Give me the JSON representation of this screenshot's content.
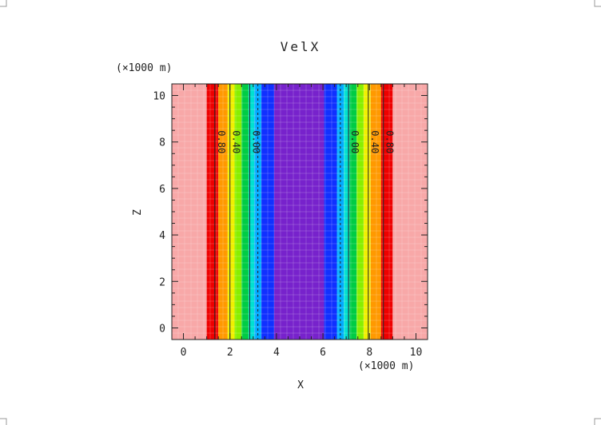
{
  "chart_data": {
    "type": "heatmap",
    "title": "VelX",
    "xlabel": "X",
    "ylabel": "Z",
    "x_unit": "(×1000 m)",
    "y_unit": "(×1000 m)",
    "xlim": [
      -0.5,
      10.5
    ],
    "ylim": [
      -0.5,
      10.5
    ],
    "x_ticks": [
      "0",
      "2",
      "4",
      "6",
      "8",
      "10"
    ],
    "y_ticks": [
      "0",
      "2",
      "4",
      "6",
      "8",
      "10"
    ],
    "bands": [
      {
        "x0": -0.5,
        "x1": 1.0,
        "color": "#f8a8a8"
      },
      {
        "x0": 1.0,
        "x1": 1.5,
        "color": "#ee0000"
      },
      {
        "x0": 1.5,
        "x1": 1.9,
        "color": "#ff9900"
      },
      {
        "x0": 1.9,
        "x1": 2.2,
        "color": "#f0f000"
      },
      {
        "x0": 2.2,
        "x1": 2.5,
        "color": "#88ee00"
      },
      {
        "x0": 2.5,
        "x1": 2.8,
        "color": "#00cc44"
      },
      {
        "x0": 2.8,
        "x1": 3.05,
        "color": "#00e0d0"
      },
      {
        "x0": 3.05,
        "x1": 3.35,
        "color": "#00aaff"
      },
      {
        "x0": 3.35,
        "x1": 3.9,
        "color": "#1030ff"
      },
      {
        "x0": 3.9,
        "x1": 6.05,
        "color": "#7722cc"
      },
      {
        "x0": 6.05,
        "x1": 6.6,
        "color": "#1030ff"
      },
      {
        "x0": 6.6,
        "x1": 6.9,
        "color": "#00aaff"
      },
      {
        "x0": 6.9,
        "x1": 7.15,
        "color": "#00e0d0"
      },
      {
        "x0": 7.15,
        "x1": 7.45,
        "color": "#00cc44"
      },
      {
        "x0": 7.45,
        "x1": 7.75,
        "color": "#88ee00"
      },
      {
        "x0": 7.75,
        "x1": 8.05,
        "color": "#f0f000"
      },
      {
        "x0": 8.05,
        "x1": 8.5,
        "color": "#ff9900"
      },
      {
        "x0": 8.5,
        "x1": 9.0,
        "color": "#ee0000"
      },
      {
        "x0": 9.0,
        "x1": 10.5,
        "color": "#f8a8a8"
      }
    ],
    "contours": [
      {
        "x": 1.35,
        "label": "0.80",
        "dashed": false
      },
      {
        "x": 2.0,
        "label": "0.40",
        "dashed": false
      },
      {
        "x": 2.85,
        "label": "0.00",
        "dashed": false
      },
      {
        "x": 3.2,
        "label": "",
        "dashed": true
      },
      {
        "x": 6.75,
        "label": "",
        "dashed": true
      },
      {
        "x": 7.1,
        "label": "0.00",
        "dashed": false
      },
      {
        "x": 7.95,
        "label": "0.40",
        "dashed": false
      },
      {
        "x": 8.6,
        "label": "0.80",
        "dashed": false
      }
    ],
    "contour_label_z": 8.0,
    "grid": false
  }
}
